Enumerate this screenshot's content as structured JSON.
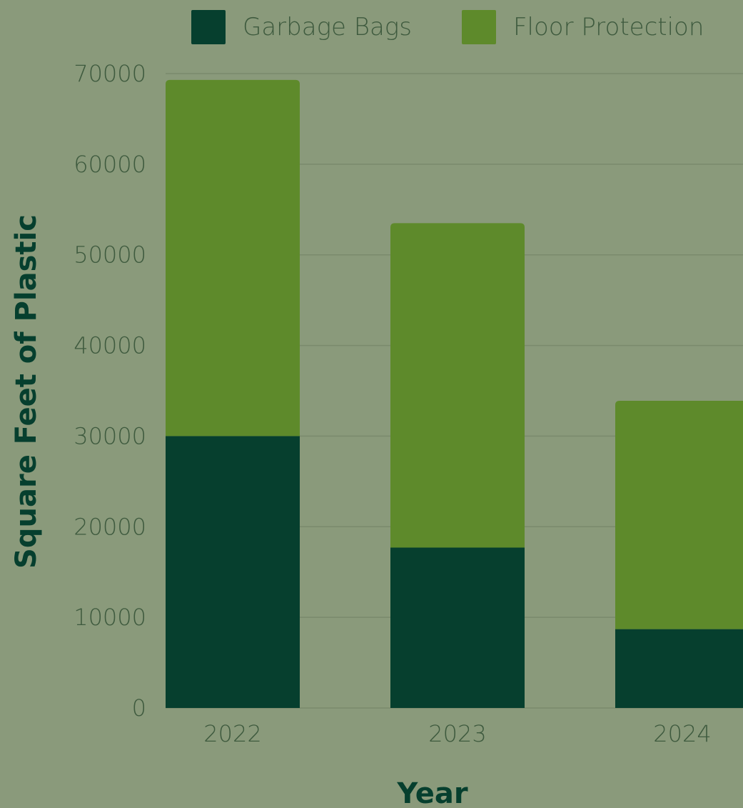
{
  "chart_data": {
    "type": "bar",
    "stacked": true,
    "categories": [
      "2022",
      "2023",
      "2024"
    ],
    "series": [
      {
        "name": "Garbage Bags",
        "color": "#063f2e",
        "values": [
          30000,
          17700,
          8700
        ]
      },
      {
        "name": "Floor Protection",
        "color": "#5e8a2b",
        "values": [
          39300,
          35800,
          25200
        ]
      }
    ],
    "xlabel": "Year",
    "ylabel": "Square Feet of Plastic",
    "ylim": [
      0,
      70000
    ],
    "yticks": [
      0,
      10000,
      20000,
      30000,
      40000,
      50000,
      60000,
      70000
    ],
    "grid": true,
    "legend_position": "top",
    "colors": {
      "background": "#8a9a7b",
      "grid": "#7a8a6c",
      "text": "#3e5a3e",
      "title": "#063f2e"
    }
  }
}
